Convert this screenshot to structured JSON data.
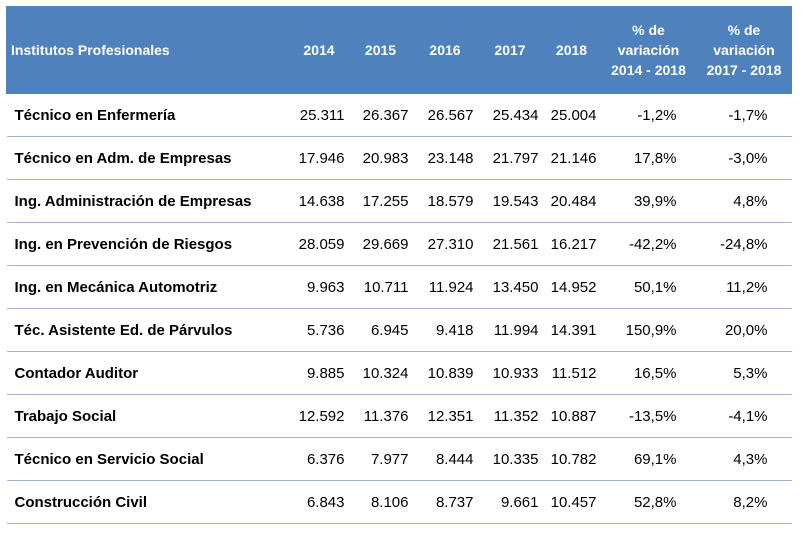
{
  "header": {
    "col_name": "Institutos Profesionales",
    "years": [
      "2014",
      "2015",
      "2016",
      "2017",
      "2018"
    ],
    "pct1": [
      "% de",
      "variación",
      "2014 - 2018"
    ],
    "pct2": [
      "% de",
      "variación",
      "2017 - 2018"
    ]
  },
  "rows": [
    {
      "name": "Técnico en Enfermería",
      "v": [
        "25.311",
        "26.367",
        "26.567",
        "25.434",
        "25.004"
      ],
      "p1": "-1,2%",
      "p2": "-1,7%"
    },
    {
      "name": "Técnico en Adm. de Empresas",
      "v": [
        "17.946",
        "20.983",
        "23.148",
        "21.797",
        "21.146"
      ],
      "p1": "17,8%",
      "p2": "-3,0%"
    },
    {
      "name": "Ing. Administración de Empresas",
      "v": [
        "14.638",
        "17.255",
        "18.579",
        "19.543",
        "20.484"
      ],
      "p1": "39,9%",
      "p2": "4,8%"
    },
    {
      "name": "Ing. en Prevención de Riesgos",
      "v": [
        "28.059",
        "29.669",
        "27.310",
        "21.561",
        "16.217"
      ],
      "p1": "-42,2%",
      "p2": "-24,8%"
    },
    {
      "name": "Ing. en Mecánica Automotriz",
      "v": [
        "9.963",
        "10.711",
        "11.924",
        "13.450",
        "14.952"
      ],
      "p1": "50,1%",
      "p2": "11,2%"
    },
    {
      "name": "Téc. Asistente Ed. de Párvulos",
      "v": [
        "5.736",
        "6.945",
        "9.418",
        "11.994",
        "14.391"
      ],
      "p1": "150,9%",
      "p2": "20,0%"
    },
    {
      "name": "Contador Auditor",
      "v": [
        "9.885",
        "10.324",
        "10.839",
        "10.933",
        "11.512"
      ],
      "p1": "16,5%",
      "p2": "5,3%"
    },
    {
      "name": "Trabajo Social",
      "v": [
        "12.592",
        "11.376",
        "12.351",
        "11.352",
        "10.887"
      ],
      "p1": "-13,5%",
      "p2": "-4,1%"
    },
    {
      "name": "Técnico en Servicio Social",
      "v": [
        "6.376",
        "7.977",
        "8.444",
        "10.335",
        "10.782"
      ],
      "p1": "69,1%",
      "p2": "4,3%"
    },
    {
      "name": "Construcción Civil",
      "v": [
        "6.843",
        "8.106",
        "8.737",
        "9.661",
        "10.457"
      ],
      "p1": "52,8%",
      "p2": "8,2%"
    }
  ]
}
